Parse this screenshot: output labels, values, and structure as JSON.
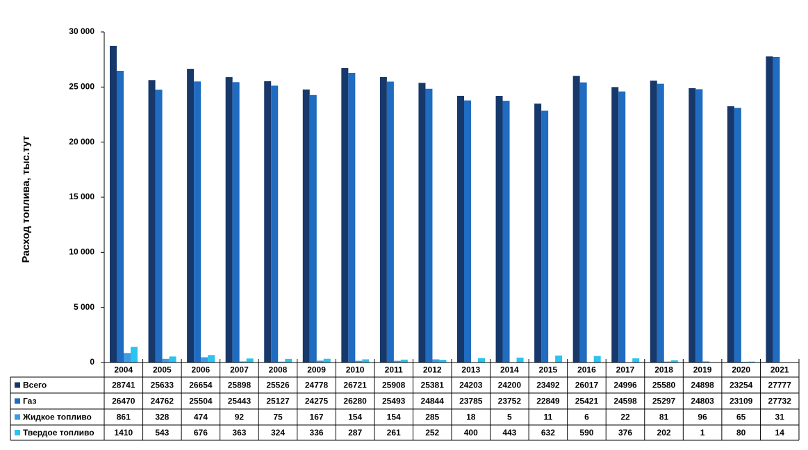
{
  "chart_data": {
    "type": "bar",
    "y_label": "Расход топлива, тыс.тут",
    "categories": [
      "2004",
      "2005",
      "2006",
      "2007",
      "2008",
      "2009",
      "2010",
      "2011",
      "2012",
      "2013",
      "2014",
      "2015",
      "2016",
      "2017",
      "2018",
      "2019",
      "2020",
      "2021"
    ],
    "series": [
      {
        "name": "Всего",
        "color": "#17386a",
        "values": [
          28741,
          25633,
          26654,
          25898,
          25526,
          24778,
          26721,
          25908,
          25381,
          24203,
          24200,
          23492,
          26017,
          24996,
          25580,
          24898,
          23254,
          27777
        ]
      },
      {
        "name": "Газ",
        "color": "#1f6cc0",
        "values": [
          26470,
          24762,
          25504,
          25443,
          25127,
          24275,
          26280,
          25493,
          24844,
          23785,
          23752,
          22849,
          25421,
          24598,
          25297,
          24803,
          23109,
          27732
        ]
      },
      {
        "name": "Жидкое топливо",
        "color": "#3f9ae6",
        "values": [
          861,
          328,
          474,
          92,
          75,
          167,
          154,
          154,
          285,
          18,
          5,
          11,
          6,
          22,
          81,
          96,
          65,
          31
        ]
      },
      {
        "name": "Твердое топливо",
        "color": "#2bc3ef",
        "values": [
          1410,
          543,
          676,
          363,
          324,
          336,
          287,
          261,
          252,
          400,
          443,
          632,
          590,
          376,
          202,
          1,
          80,
          14
        ]
      }
    ],
    "ylim": [
      0,
      30000
    ],
    "yticks": [
      {
        "value": 0,
        "label": "0"
      },
      {
        "value": 5000,
        "label": "5 000"
      },
      {
        "value": 10000,
        "label": "10 000"
      },
      {
        "value": 15000,
        "label": "15 000"
      },
      {
        "value": 20000,
        "label": "20 000"
      },
      {
        "value": 25000,
        "label": "25 000"
      },
      {
        "value": 30000,
        "label": "30 000"
      }
    ]
  }
}
